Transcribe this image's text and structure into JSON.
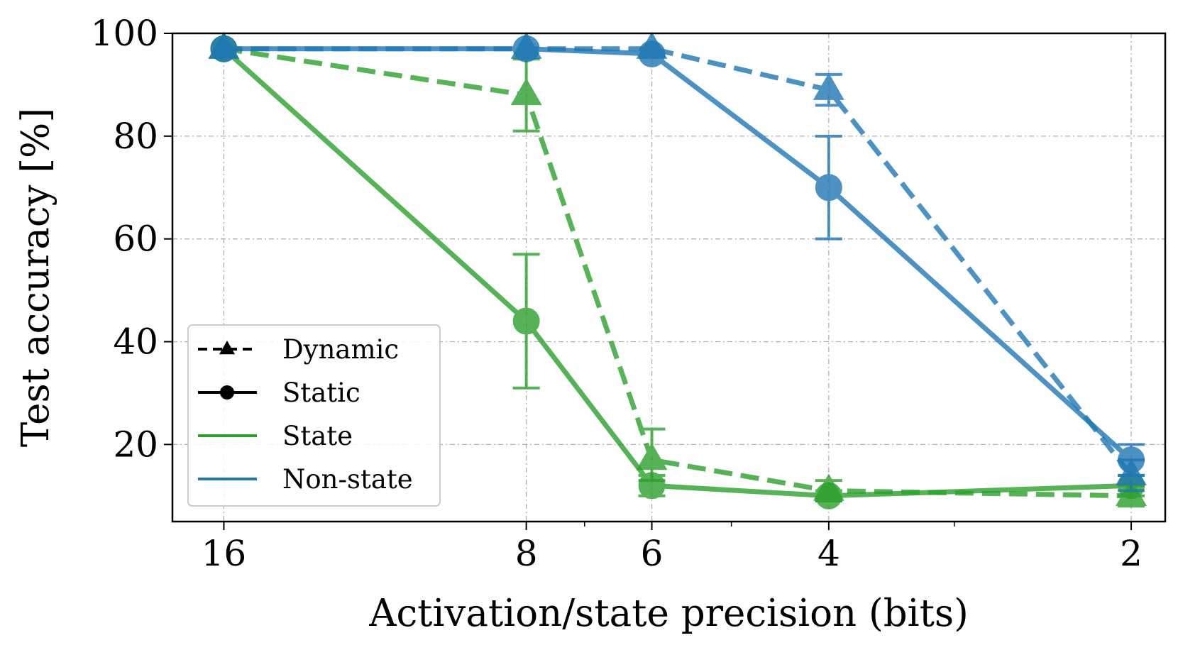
{
  "chart_data": {
    "type": "line",
    "title": "",
    "xlabel": "Activation/state precision (bits)",
    "ylabel": "Test accuracy [%]",
    "x": [
      16,
      8,
      6,
      4,
      2
    ],
    "xtick_labels": [
      "16",
      "8",
      "6",
      "4",
      "2"
    ],
    "x_scale": "log-reversed",
    "xlim": [
      18.0,
      1.85
    ],
    "ylim": [
      5,
      100
    ],
    "yticks": [
      20,
      40,
      60,
      80,
      100
    ],
    "ytick_labels": [
      "20",
      "40",
      "60",
      "80",
      "100"
    ],
    "grid": true,
    "legend_position": "lower-left",
    "legend": [
      {
        "label": "Dynamic",
        "kind": "style",
        "line": "dashed",
        "marker": "triangle",
        "color": "#000000"
      },
      {
        "label": "Static",
        "kind": "style",
        "line": "solid",
        "marker": "circle",
        "color": "#000000"
      },
      {
        "label": "State",
        "kind": "color",
        "line": "solid",
        "color": "#2ca02c"
      },
      {
        "label": "Non-state",
        "kind": "color",
        "line": "solid",
        "color": "#1f77b4"
      }
    ],
    "series": [
      {
        "name": "State, Dynamic",
        "color": "#2ca02c",
        "line": "dashed",
        "marker": "triangle",
        "values": [
          97,
          88,
          17,
          11,
          10
        ],
        "err_low": [
          0,
          81,
          13,
          9,
          8
        ],
        "err_high": [
          0,
          95,
          23,
          13,
          12
        ]
      },
      {
        "name": "State, Static",
        "color": "#2ca02c",
        "line": "solid",
        "marker": "circle",
        "values": [
          97,
          44,
          12,
          10,
          12
        ],
        "err_low": [
          0,
          31,
          10,
          9,
          10
        ],
        "err_high": [
          0,
          57,
          14,
          11,
          14
        ]
      },
      {
        "name": "Non-state, Dynamic",
        "color": "#1f77b4",
        "line": "dashed",
        "marker": "triangle",
        "values": [
          97,
          97,
          97,
          89,
          14
        ],
        "err_low": [
          0,
          0,
          0,
          86,
          11
        ],
        "err_high": [
          0,
          0,
          0,
          92,
          17
        ]
      },
      {
        "name": "Non-state, Static",
        "color": "#1f77b4",
        "line": "solid",
        "marker": "circle",
        "values": [
          97,
          97,
          96,
          70,
          17
        ],
        "err_low": [
          0,
          0,
          0,
          60,
          14
        ],
        "err_high": [
          0,
          0,
          0,
          80,
          20
        ]
      }
    ]
  }
}
